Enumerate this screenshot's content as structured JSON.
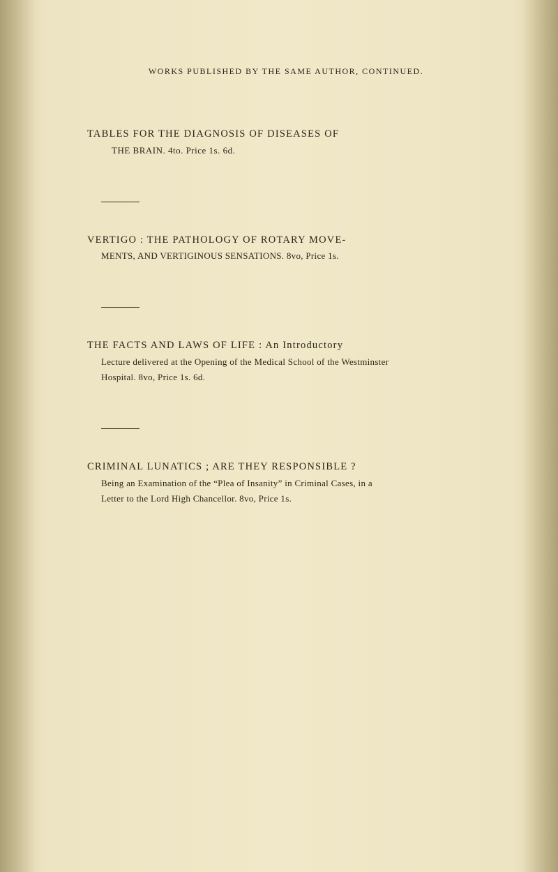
{
  "header": "WORKS PUBLISHED BY THE SAME AUTHOR, CONTINUED.",
  "entries": [
    {
      "titleLine": "TABLES FOR THE DIAGNOSIS OF DISEASES OF",
      "subtitleLine": "THE BRAIN.  4to. Price 1s. 6d."
    },
    {
      "titleLine": "VERTIGO : THE PATHOLOGY OF ROTARY MOVE-",
      "subtitleLine": "MENTS, AND VERTIGINOUS SENSATIONS.  8vo, Price 1s."
    },
    {
      "titleLine": "THE FACTS AND LAWS OF LIFE :  An Introductory",
      "bodyLine1": "Lecture delivered at the Opening of the Medical School of the Westminster",
      "bodyLine2": "Hospital.  8vo, Price 1s. 6d."
    },
    {
      "titleLine": "CRIMINAL LUNATICS ;  ARE THEY RESPONSIBLE ?",
      "bodyLine1": "Being an Examination of the “Plea of Insanity” in Criminal Cases, in a",
      "bodyLine2": "Letter to the Lord High Chancellor.  8vo, Price 1s."
    }
  ]
}
